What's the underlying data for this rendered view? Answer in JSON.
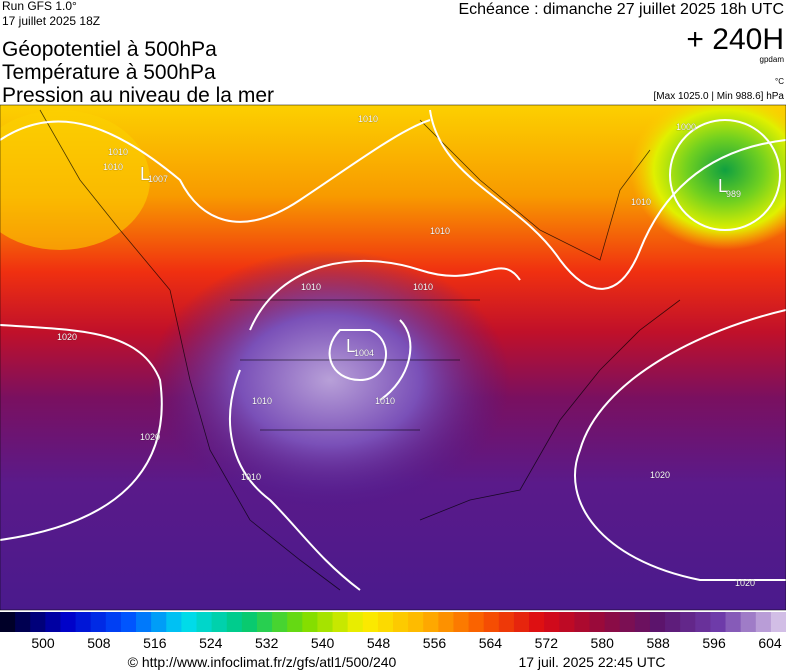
{
  "header": {
    "run": "Run GFS 1.0°",
    "run_date": "17 juillet 2025 18Z",
    "titles": [
      "Géopotentiel à 500hPa",
      "Température à 500hPa",
      "Pression au niveau de la mer"
    ],
    "echeance": "Echéance : dimanche 27 juillet 2025 18h UTC",
    "lead": "+ 240H",
    "unit_geo": "gpdam",
    "unit_temp": "°C",
    "range": "[Max 1025.0 | Min 988.6] hPa"
  },
  "map": {
    "labels": [
      "1010",
      "1010",
      "L",
      "1007",
      "1010",
      "1010",
      "1010",
      "1010",
      "1020",
      "L",
      "1004",
      "1010",
      "1010",
      "1010",
      "1020",
      "1020",
      "1020",
      "1000",
      "1010",
      "L",
      "989"
    ]
  },
  "colorbar": {
    "labels": [
      "500",
      "508",
      "516",
      "524",
      "532",
      "540",
      "548",
      "556",
      "564",
      "572",
      "580",
      "588",
      "596",
      "604"
    ]
  },
  "footer": {
    "url": "© http://www.infoclimat.fr/z/gfs/atl1/500/240",
    "generated": "17 juil. 2025 22:45 UTC"
  }
}
